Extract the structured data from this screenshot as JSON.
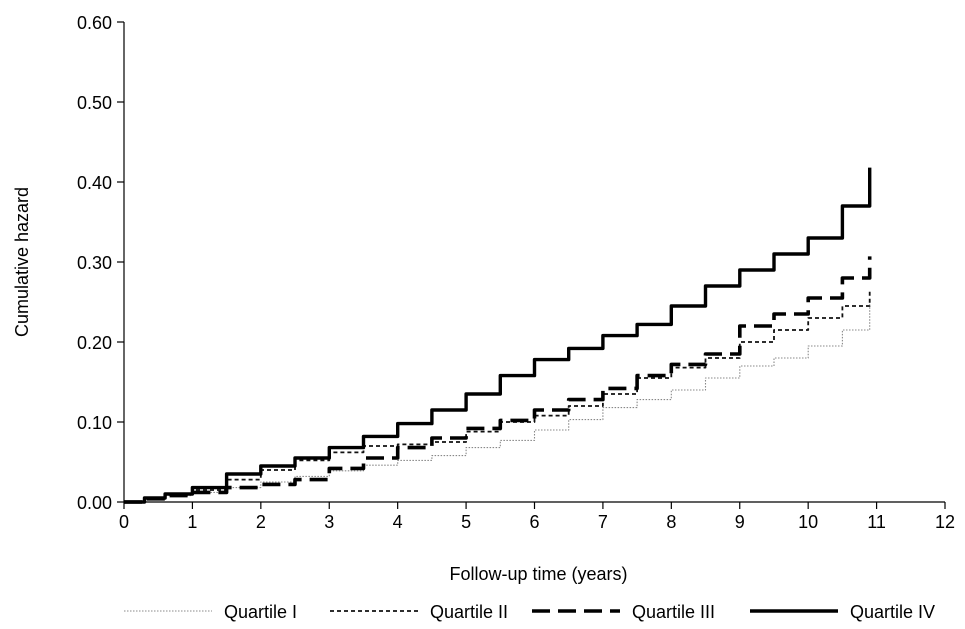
{
  "chart_data": {
    "type": "line",
    "title": "",
    "xlabel": "Follow-up time (years)",
    "ylabel": "Cumulative hazard",
    "xlim": [
      0,
      12
    ],
    "ylim": [
      0,
      0.6
    ],
    "x_ticks": [
      0,
      1,
      2,
      3,
      4,
      5,
      6,
      7,
      8,
      9,
      10,
      11,
      12
    ],
    "x_tick_labels": [
      "0",
      "1",
      "2",
      "3",
      "4",
      "5",
      "6",
      "7",
      "8",
      "9",
      "10",
      "11",
      "12"
    ],
    "y_ticks": [
      0,
      0.1,
      0.2,
      0.3,
      0.4,
      0.5,
      0.6
    ],
    "y_tick_labels": [
      "0.00",
      "0.10",
      "0.20",
      "0.30",
      "0.40",
      "0.50",
      "0.60"
    ],
    "grid": false,
    "legend_position": "bottom",
    "series": [
      {
        "name": "Quartile I",
        "style": "dotted-thin",
        "color": "#888888",
        "x": [
          0,
          0.3,
          0.6,
          1.0,
          1.5,
          2.0,
          2.5,
          3.0,
          3.5,
          4.0,
          4.5,
          5.0,
          5.5,
          6.0,
          6.5,
          7.0,
          7.5,
          8.0,
          8.5,
          9.0,
          9.5,
          10.0,
          10.5,
          10.9
        ],
        "values": [
          0,
          0.004,
          0.008,
          0.012,
          0.018,
          0.025,
          0.032,
          0.039,
          0.046,
          0.052,
          0.058,
          0.068,
          0.077,
          0.09,
          0.103,
          0.118,
          0.128,
          0.14,
          0.155,
          0.17,
          0.18,
          0.195,
          0.215,
          0.247
        ]
      },
      {
        "name": "Quartile II",
        "style": "short-dash",
        "color": "#111111",
        "x": [
          0,
          0.3,
          0.6,
          1.0,
          1.5,
          2.0,
          2.5,
          3.0,
          3.5,
          4.0,
          4.5,
          5.0,
          5.5,
          6.0,
          6.5,
          7.0,
          7.5,
          8.0,
          8.5,
          9.0,
          9.5,
          10.0,
          10.5,
          10.9
        ],
        "values": [
          0,
          0.005,
          0.01,
          0.015,
          0.028,
          0.04,
          0.052,
          0.062,
          0.07,
          0.072,
          0.075,
          0.088,
          0.1,
          0.108,
          0.12,
          0.135,
          0.155,
          0.168,
          0.18,
          0.2,
          0.215,
          0.23,
          0.245,
          0.263
        ]
      },
      {
        "name": "Quartile III",
        "style": "long-dash",
        "color": "#000000",
        "x": [
          0,
          0.3,
          0.6,
          1.0,
          1.5,
          2.0,
          2.5,
          3.0,
          3.5,
          4.0,
          4.5,
          5.0,
          5.5,
          6.0,
          6.5,
          7.0,
          7.5,
          8.0,
          8.5,
          9.0,
          9.5,
          10.0,
          10.5,
          10.9
        ],
        "values": [
          0,
          0.004,
          0.008,
          0.012,
          0.018,
          0.022,
          0.028,
          0.042,
          0.055,
          0.068,
          0.08,
          0.092,
          0.102,
          0.115,
          0.128,
          0.142,
          0.158,
          0.172,
          0.185,
          0.22,
          0.235,
          0.255,
          0.28,
          0.307
        ]
      },
      {
        "name": "Quartile IV",
        "style": "solid",
        "color": "#000000",
        "x": [
          0,
          0.3,
          0.6,
          1.0,
          1.5,
          2.0,
          2.5,
          3.0,
          3.5,
          4.0,
          4.5,
          5.0,
          5.5,
          6.0,
          6.5,
          7.0,
          7.5,
          8.0,
          8.5,
          9.0,
          9.5,
          10.0,
          10.5,
          10.9
        ],
        "values": [
          0,
          0.005,
          0.01,
          0.018,
          0.035,
          0.045,
          0.055,
          0.068,
          0.082,
          0.098,
          0.115,
          0.135,
          0.158,
          0.178,
          0.192,
          0.208,
          0.222,
          0.245,
          0.27,
          0.29,
          0.31,
          0.33,
          0.37,
          0.418
        ]
      }
    ]
  }
}
